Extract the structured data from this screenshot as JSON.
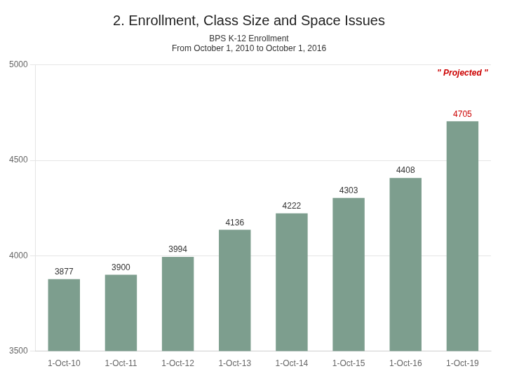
{
  "chart_data": {
    "type": "bar",
    "title": "2. Enrollment, Class Size and Space Issues",
    "subtitle": [
      "BPS K-12 Enrollment",
      "From October 1, 2010 to October 1, 2016"
    ],
    "categories": [
      "1-Oct-10",
      "1-Oct-11",
      "1-Oct-12",
      "1-Oct-13",
      "1-Oct-14",
      "1-Oct-15",
      "1-Oct-16",
      "1-Oct-19"
    ],
    "values": [
      3877,
      3900,
      3994,
      4136,
      4222,
      4303,
      4408,
      4705
    ],
    "color": "#7d9e8e",
    "ylim": [
      3500,
      5000
    ],
    "yticks": [
      3500,
      4000,
      4500,
      5000
    ],
    "grid": true,
    "data_labels": true,
    "annotations": [
      {
        "text": "\" Projected \"",
        "color": "#cc0000"
      }
    ]
  }
}
